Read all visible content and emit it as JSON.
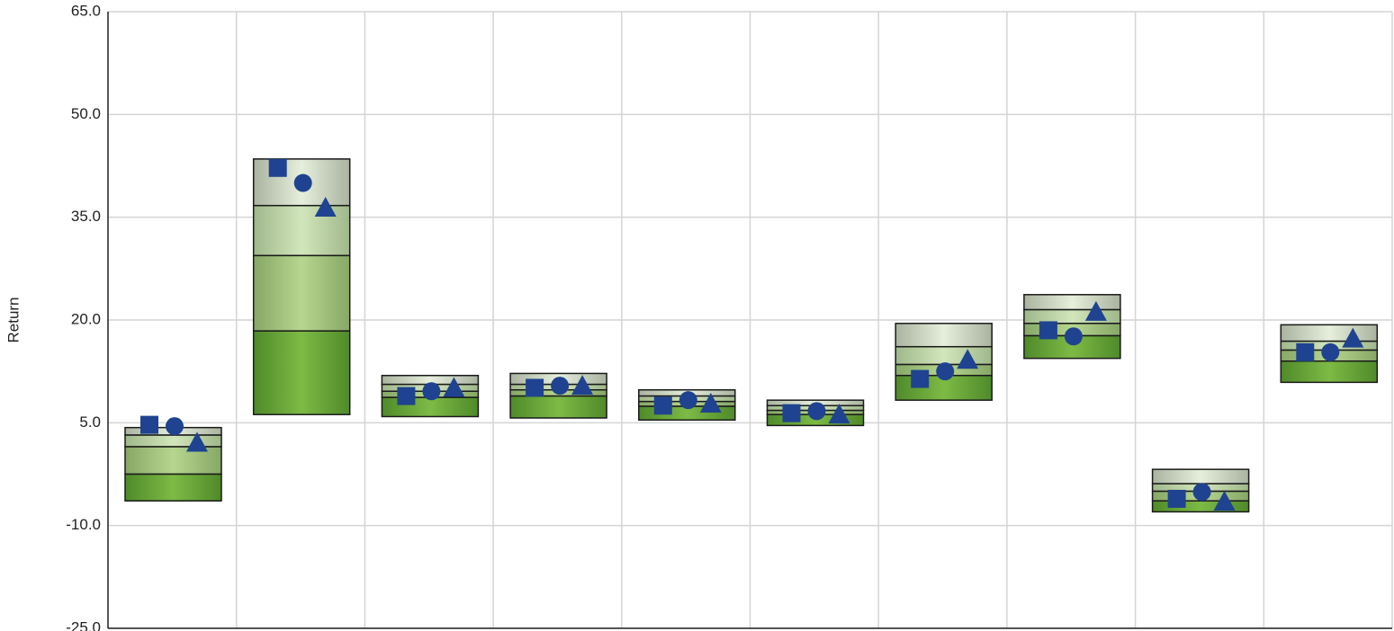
{
  "chart_data": {
    "type": "quantile-box",
    "y_label": "Return",
    "categories": [
      null,
      null,
      null,
      null,
      null,
      null,
      null,
      null,
      null,
      null
    ],
    "boxes": [
      [
        4.3,
        3.2,
        1.5,
        -2.5,
        -6.4
      ],
      [
        43.5,
        36.7,
        29.4,
        18.4,
        6.2
      ],
      [
        11.9,
        10.6,
        9.6,
        8.7,
        5.9
      ],
      [
        12.2,
        10.6,
        9.8,
        8.9,
        5.7
      ],
      [
        9.8,
        8.9,
        8.1,
        7.4,
        5.4
      ],
      [
        8.3,
        7.5,
        6.8,
        6.2,
        4.6
      ],
      [
        19.5,
        16.1,
        13.5,
        11.9,
        8.3
      ],
      [
        23.7,
        21.5,
        19.5,
        17.7,
        14.4
      ],
      [
        -1.8,
        -3.9,
        -5.0,
        -6.4,
        -8.0
      ],
      [
        19.3,
        16.9,
        15.6,
        14.0,
        10.9
      ]
    ],
    "segment_colors": [
      [
        "#a9b39f",
        "#e6efdc"
      ],
      [
        "#9fb88a",
        "#d2e6bb"
      ],
      [
        "#86a866",
        "#b7d68f"
      ],
      [
        "#4f8a2a",
        "#7dba45"
      ]
    ],
    "markers": [
      {
        "shape": "square",
        "color": "#1f4390",
        "values": [
          4.7,
          42.2,
          8.9,
          10.1,
          7.5,
          6.4,
          11.4,
          18.5,
          -6.1,
          15.3
        ]
      },
      {
        "shape": "circle",
        "color": "#1f4390",
        "values": [
          4.5,
          40.0,
          9.6,
          10.4,
          8.3,
          6.7,
          12.5,
          17.6,
          -5.1,
          15.3
        ]
      },
      {
        "shape": "triangle",
        "color": "#1f4390",
        "values": [
          2.1,
          36.4,
          10.1,
          10.4,
          7.8,
          6.2,
          14.2,
          21.2,
          -6.5,
          17.3
        ]
      }
    ],
    "ylim": [
      -25,
      65
    ],
    "yticks": [
      {
        "value": -25,
        "label": "-25.0"
      },
      {
        "value": -10,
        "label": "-10.0"
      },
      {
        "value": 5,
        "label": "5.0"
      },
      {
        "value": 20,
        "label": "20.0"
      },
      {
        "value": 35,
        "label": "35.0"
      },
      {
        "value": 50,
        "label": "50.0"
      },
      {
        "value": 65,
        "label": "65.0"
      }
    ],
    "grid": true
  }
}
